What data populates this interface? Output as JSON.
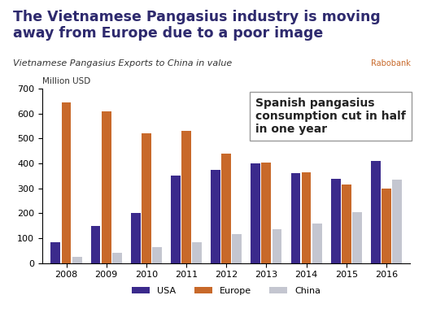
{
  "chart_data": {
    "type": "bar",
    "title": "The Vietnamese Pangasius industry is moving away from Europe due to a poor image",
    "subtitle": "Vietnamese Pangasius Exports to China in value",
    "y_label": "Million USD",
    "annotation": "Spanish pangasius consumption cut in half in one year",
    "logo": "Rabobank",
    "categories": [
      "2008",
      "2009",
      "2010",
      "2011",
      "2012",
      "2013",
      "2014",
      "2015",
      "2016"
    ],
    "series": [
      {
        "name": "USA",
        "color": "#3b2a8c",
        "values": [
          85,
          150,
          200,
          350,
          375,
          400,
          360,
          340,
          410
        ]
      },
      {
        "name": "Europe",
        "color": "#c8692a",
        "values": [
          645,
          610,
          520,
          530,
          440,
          405,
          365,
          315,
          300
        ]
      },
      {
        "name": "China",
        "color": "#c4c6d0",
        "values": [
          25,
          40,
          65,
          85,
          115,
          135,
          160,
          205,
          335
        ]
      }
    ],
    "ylim": [
      0,
      700
    ],
    "yticks": [
      0,
      100,
      200,
      300,
      400,
      500,
      600,
      700
    ],
    "grid": false,
    "legend": "bottom"
  }
}
